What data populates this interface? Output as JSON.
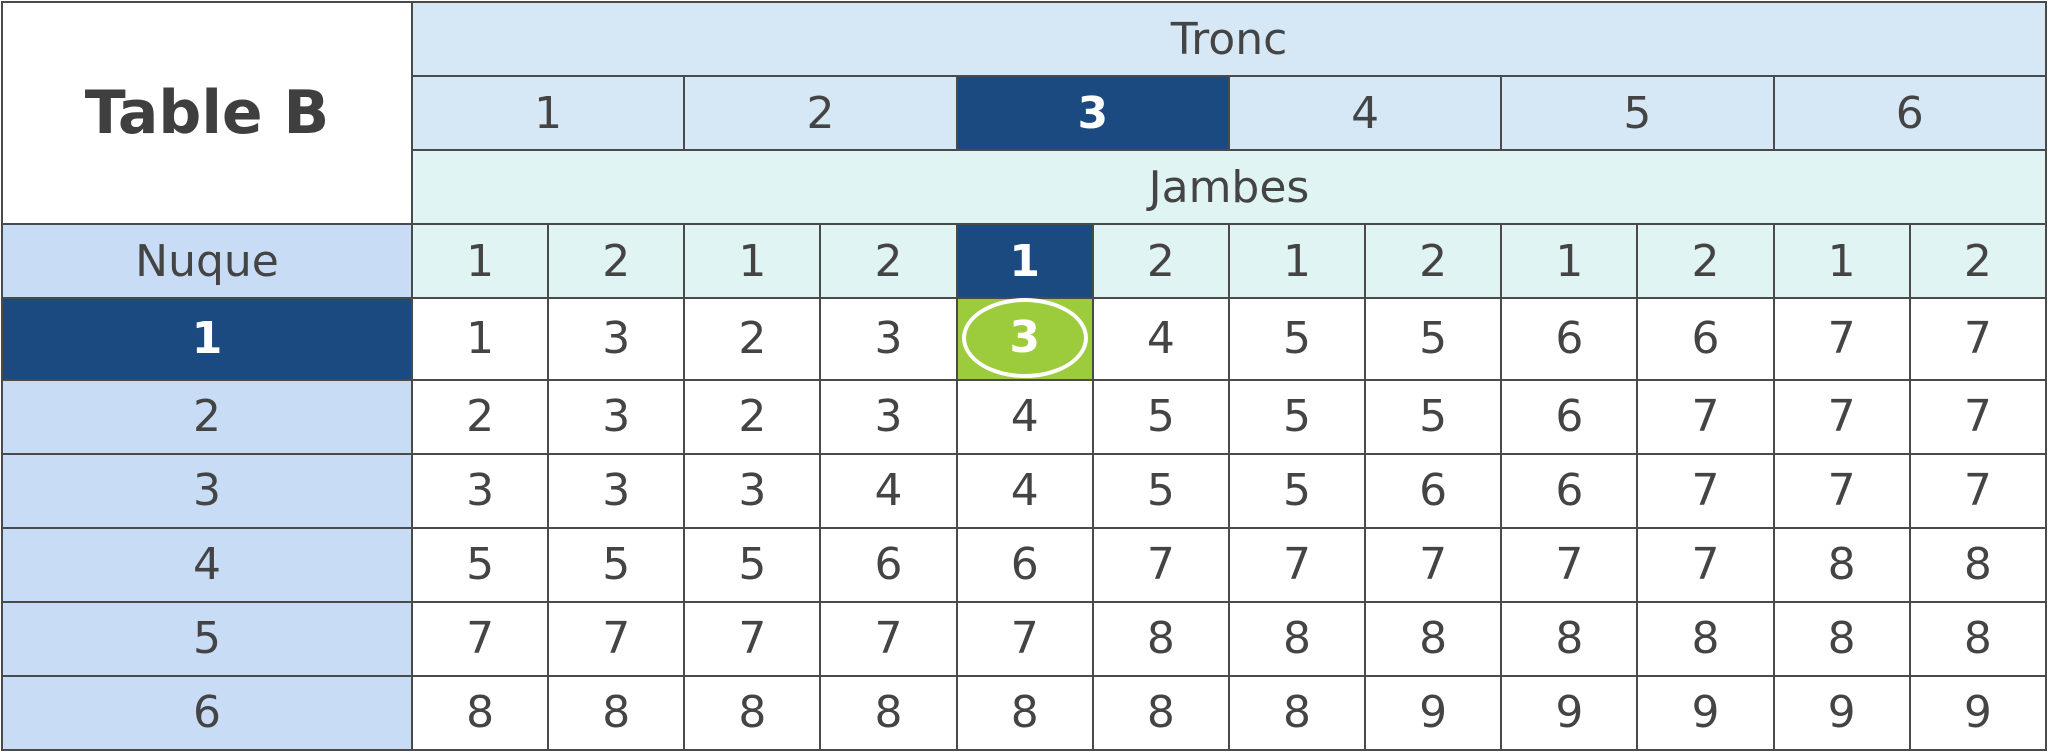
{
  "title": "Table B",
  "tronc_label": "Tronc",
  "jambes_label": "Jambes",
  "nuque_label": "Nuque",
  "tronc_values": [
    "1",
    "2",
    "3",
    "4",
    "5",
    "6"
  ],
  "jambes_values": [
    "1",
    "2",
    "1",
    "2",
    "1",
    "2",
    "1",
    "2",
    "1",
    "2",
    "1",
    "2"
  ],
  "selected": {
    "tronc": "3",
    "jambes": "1",
    "nuque": "1",
    "result": "3"
  },
  "colors": {
    "dark_highlight": "#1b4a80",
    "result_highlight": "#9ccb3b",
    "header_blue": "#d6e8f6",
    "header_teal": "#e0f4f3",
    "nuque_column": "#c9dcf6"
  },
  "rows": [
    {
      "nuque": "1",
      "values": [
        "1",
        "3",
        "2",
        "3",
        "3",
        "4",
        "5",
        "5",
        "6",
        "6",
        "7",
        "7"
      ]
    },
    {
      "nuque": "2",
      "values": [
        "2",
        "3",
        "2",
        "3",
        "4",
        "5",
        "5",
        "5",
        "6",
        "7",
        "7",
        "7"
      ]
    },
    {
      "nuque": "3",
      "values": [
        "3",
        "3",
        "3",
        "4",
        "4",
        "5",
        "5",
        "6",
        "6",
        "7",
        "7",
        "7"
      ]
    },
    {
      "nuque": "4",
      "values": [
        "5",
        "5",
        "5",
        "6",
        "6",
        "7",
        "7",
        "7",
        "7",
        "7",
        "8",
        "8"
      ]
    },
    {
      "nuque": "5",
      "values": [
        "7",
        "7",
        "7",
        "7",
        "7",
        "8",
        "8",
        "8",
        "8",
        "8",
        "8",
        "8"
      ]
    },
    {
      "nuque": "6",
      "values": [
        "8",
        "8",
        "8",
        "8",
        "8",
        "8",
        "8",
        "9",
        "9",
        "9",
        "9",
        "9"
      ]
    }
  ]
}
